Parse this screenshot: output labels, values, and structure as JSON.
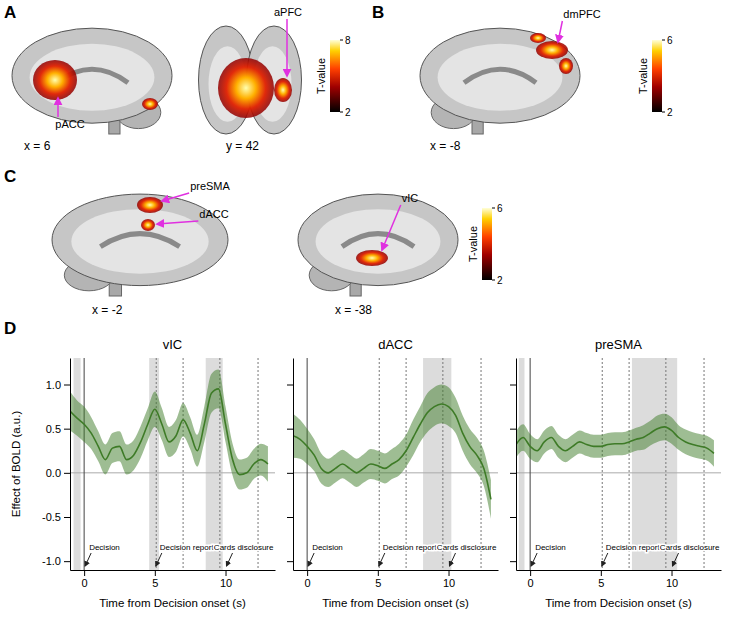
{
  "brain_panels": [
    {
      "letter": "A",
      "slices": [
        {
          "coordinate": "x = 6",
          "regions": [
            "pACC"
          ]
        },
        {
          "coordinate": "y = 42",
          "regions": [
            "aPFC"
          ]
        }
      ],
      "colorbar": {
        "title": "T-value",
        "range": [
          2,
          8
        ],
        "ticks": [
          2,
          8
        ]
      }
    },
    {
      "letter": "B",
      "slices": [
        {
          "coordinate": "x = -8",
          "regions": [
            "dmPFC"
          ]
        }
      ],
      "colorbar": {
        "title": "T-value",
        "range": [
          2,
          6
        ],
        "ticks": [
          2,
          6
        ]
      }
    },
    {
      "letter": "C",
      "slices": [
        {
          "coordinate": "x = -2",
          "regions": [
            "preSMA",
            "dACC"
          ]
        },
        {
          "coordinate": "x = -38",
          "regions": [
            "vIC"
          ]
        }
      ],
      "colorbar": {
        "title": "T-value",
        "range": [
          2,
          6
        ],
        "ticks": [
          2,
          6
        ]
      }
    }
  ],
  "chart_letter": "D",
  "chart_data": [
    {
      "type": "line",
      "title": "vIC",
      "x_label": "Time from Decision onset (s)",
      "y_label": "Effect of BOLD (a.u.)",
      "x": [
        -1,
        -0.5,
        0,
        0.5,
        1,
        1.5,
        2,
        2.5,
        3,
        3.5,
        4,
        4.5,
        5,
        5.5,
        6,
        6.5,
        7,
        7.5,
        8,
        8.5,
        9,
        9.5,
        10,
        10.5,
        11,
        11.5,
        12,
        12.5,
        13
      ],
      "series": [
        {
          "color": "#3e7b27",
          "values": [
            0.7,
            0.62,
            0.55,
            0.45,
            0.3,
            0.15,
            0.28,
            0.3,
            0.15,
            0.2,
            0.35,
            0.55,
            0.72,
            0.55,
            0.35,
            0.42,
            0.6,
            0.45,
            0.25,
            0.55,
            0.9,
            0.95,
            0.55,
            0.15,
            -0.02,
            0,
            0.1,
            0.15,
            0.1
          ],
          "error": [
            0.22,
            0.2,
            0.2,
            0.18,
            0.17,
            0.17,
            0.17,
            0.17,
            0.17,
            0.17,
            0.18,
            0.18,
            0.2,
            0.18,
            0.17,
            0.18,
            0.19,
            0.18,
            0.18,
            0.2,
            0.22,
            0.22,
            0.2,
            0.18,
            0.17,
            0.17,
            0.17,
            0.18,
            0.2
          ]
        }
      ],
      "xlim": [
        -1,
        13.5
      ],
      "xticks": [
        0,
        5,
        10
      ],
      "ylim": [
        -1.1,
        1.3
      ],
      "yticks": [
        {
          "value": -1,
          "label": "-1.0"
        },
        -0.5,
        {
          "value": 0,
          "label": "0.0"
        },
        0.5,
        {
          "value": 1,
          "label": "1.0"
        }
      ],
      "tick_labels": true,
      "shaded_windows": [
        [
          -0.75,
          -0.25
        ],
        [
          4.6,
          5.3
        ],
        [
          8.6,
          9.8
        ]
      ],
      "reference_lines": {
        "x": [
          0
        ],
        "y": [
          0
        ]
      },
      "dotted_lines": [
        5.1,
        7.0,
        9.6,
        12.3
      ],
      "events": [
        {
          "x": 0,
          "label": "Decision"
        },
        {
          "x": 5,
          "label": "Decision report"
        },
        {
          "x": 10,
          "label": "Cards disclosure"
        }
      ]
    },
    {
      "type": "line",
      "title": "dACC",
      "x_label": "Time from Decision onset (s)",
      "x": [
        -1,
        -0.5,
        0,
        0.5,
        1,
        1.5,
        2,
        2.5,
        3,
        3.5,
        4,
        4.5,
        5,
        5.5,
        6,
        6.5,
        7,
        7.5,
        8,
        8.5,
        9,
        9.5,
        10,
        10.5,
        11,
        11.5,
        12,
        12.5,
        13
      ],
      "series": [
        {
          "color": "#3e7b27",
          "values": [
            0.42,
            0.38,
            0.3,
            0.2,
            0.05,
            0,
            0.05,
            0.1,
            0.05,
            0,
            0.05,
            0.1,
            0.08,
            0.05,
            0.1,
            0.15,
            0.25,
            0.4,
            0.55,
            0.68,
            0.75,
            0.78,
            0.75,
            0.65,
            0.45,
            0.3,
            0.2,
            0.05,
            -0.3
          ],
          "error": [
            0.25,
            0.22,
            0.2,
            0.18,
            0.17,
            0.16,
            0.16,
            0.16,
            0.16,
            0.16,
            0.16,
            0.17,
            0.17,
            0.17,
            0.17,
            0.18,
            0.18,
            0.2,
            0.2,
            0.22,
            0.22,
            0.22,
            0.22,
            0.2,
            0.2,
            0.2,
            0.2,
            0.2,
            0.22
          ]
        }
      ],
      "xlim": [
        -1,
        13.5
      ],
      "xticks": [
        0,
        5,
        10
      ],
      "ylim": [
        -1.1,
        1.3
      ],
      "yticks": [
        {
          "value": -1,
          "label": "-1.0"
        },
        -0.5,
        {
          "value": 0,
          "label": "0.0"
        },
        0.5,
        {
          "value": 1,
          "label": "1.0"
        }
      ],
      "tick_labels": "x",
      "shaded_windows": [
        [
          8.2,
          10.2
        ]
      ],
      "reference_lines": {
        "x": [
          0
        ],
        "y": [
          0
        ]
      },
      "dotted_lines": [
        5.1,
        7.0,
        9.6,
        12.3
      ],
      "events": [
        {
          "x": 0,
          "label": "Decision"
        },
        {
          "x": 5,
          "label": "Decision report"
        },
        {
          "x": 10,
          "label": "Cards disclosure"
        }
      ]
    },
    {
      "type": "line",
      "title": "preSMA",
      "x_label": "Time from Decision onset (s)",
      "x": [
        -1,
        -0.5,
        0,
        0.5,
        1,
        1.5,
        2,
        2.5,
        3,
        3.5,
        4,
        4.5,
        5,
        5.5,
        6,
        6.5,
        7,
        7.5,
        8,
        8.5,
        9,
        9.5,
        10,
        10.5,
        11,
        11.5,
        12,
        12.5,
        13
      ],
      "series": [
        {
          "color": "#3e7b27",
          "values": [
            0.32,
            0.4,
            0.3,
            0.25,
            0.35,
            0.4,
            0.3,
            0.25,
            0.3,
            0.35,
            0.32,
            0.3,
            0.3,
            0.32,
            0.33,
            0.33,
            0.35,
            0.38,
            0.4,
            0.45,
            0.5,
            0.52,
            0.48,
            0.4,
            0.35,
            0.32,
            0.3,
            0.28,
            0.22
          ],
          "error": [
            0.15,
            0.15,
            0.14,
            0.13,
            0.13,
            0.13,
            0.13,
            0.13,
            0.13,
            0.13,
            0.13,
            0.13,
            0.13,
            0.13,
            0.13,
            0.13,
            0.13,
            0.13,
            0.14,
            0.14,
            0.15,
            0.15,
            0.15,
            0.14,
            0.14,
            0.14,
            0.14,
            0.14,
            0.15
          ]
        }
      ],
      "xlim": [
        -1,
        13.5
      ],
      "xticks": [
        0,
        5,
        10
      ],
      "ylim": [
        -1.1,
        1.3
      ],
      "yticks": [
        {
          "value": -1,
          "label": "-1.0"
        },
        -0.5,
        {
          "value": 0,
          "label": "0.0"
        },
        0.5,
        {
          "value": 1,
          "label": "1.0"
        }
      ],
      "tick_labels": "x",
      "shaded_windows": [
        [
          -0.8,
          -0.4
        ],
        [
          7.2,
          10.4
        ]
      ],
      "reference_lines": {
        "x": [
          0
        ],
        "y": [
          0
        ]
      },
      "dotted_lines": [
        5.1,
        7.0,
        9.6,
        12.3
      ],
      "events": [
        {
          "x": 0,
          "label": "Decision"
        },
        {
          "x": 5,
          "label": "Decision report"
        },
        {
          "x": 10,
          "label": "Cards disclosure"
        }
      ]
    }
  ]
}
